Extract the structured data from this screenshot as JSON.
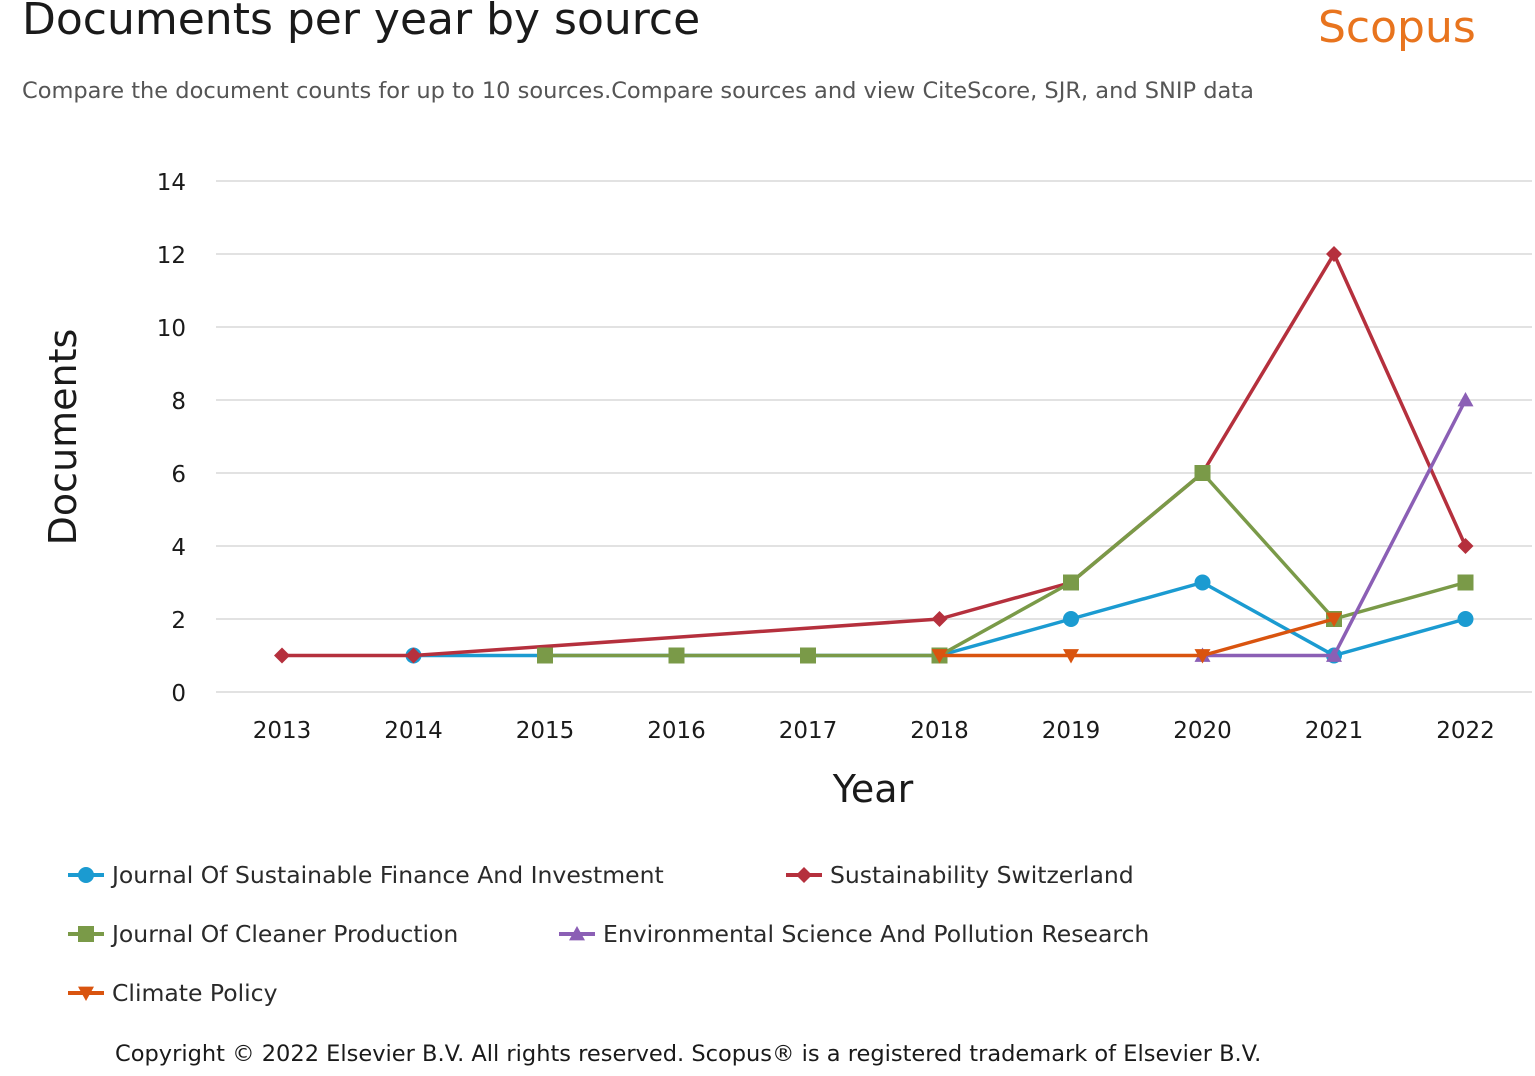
{
  "header": {
    "title": "Documents per year by source",
    "brand": "Scopus",
    "subtitle": "Compare the document counts for up to 10 sources.Compare sources and view CiteScore, SJR, and SNIP data"
  },
  "chart_data": {
    "type": "line",
    "title": "Documents per year by source",
    "xlabel": "Year",
    "ylabel": "Documents",
    "x": [
      2013,
      2014,
      2015,
      2016,
      2017,
      2018,
      2019,
      2020,
      2021,
      2022
    ],
    "ylim": [
      0,
      14
    ],
    "yticks": [
      0,
      2,
      4,
      6,
      8,
      10,
      12,
      14
    ],
    "grid": "horizontal",
    "legend_position": "bottom",
    "series": [
      {
        "name": "Journal Of Sustainable Finance And Investment",
        "color": "#1b9bd1",
        "marker": "circle",
        "values": [
          null,
          1,
          1,
          1,
          1,
          1,
          2,
          3,
          1,
          2
        ]
      },
      {
        "name": "Sustainability Switzerland",
        "color": "#b5303d",
        "marker": "diamond",
        "values": [
          1,
          1,
          null,
          null,
          null,
          2,
          3,
          6,
          12,
          4
        ]
      },
      {
        "name": "Journal Of Cleaner Production",
        "color": "#7a9a48",
        "marker": "square",
        "values": [
          null,
          null,
          1,
          1,
          1,
          1,
          3,
          6,
          2,
          3
        ]
      },
      {
        "name": "Environmental Science And Pollution Research",
        "color": "#8b5fb5",
        "marker": "triangle-up",
        "values": [
          null,
          null,
          null,
          null,
          null,
          null,
          null,
          1,
          1,
          8
        ]
      },
      {
        "name": "Climate Policy",
        "color": "#d9540f",
        "marker": "triangle-down",
        "values": [
          null,
          null,
          null,
          null,
          null,
          1,
          1,
          1,
          2,
          null
        ]
      }
    ]
  },
  "footer": {
    "copyright": "Copyright © 2022 Elsevier B.V. All rights reserved. Scopus® is a registered trademark of Elsevier B.V."
  }
}
